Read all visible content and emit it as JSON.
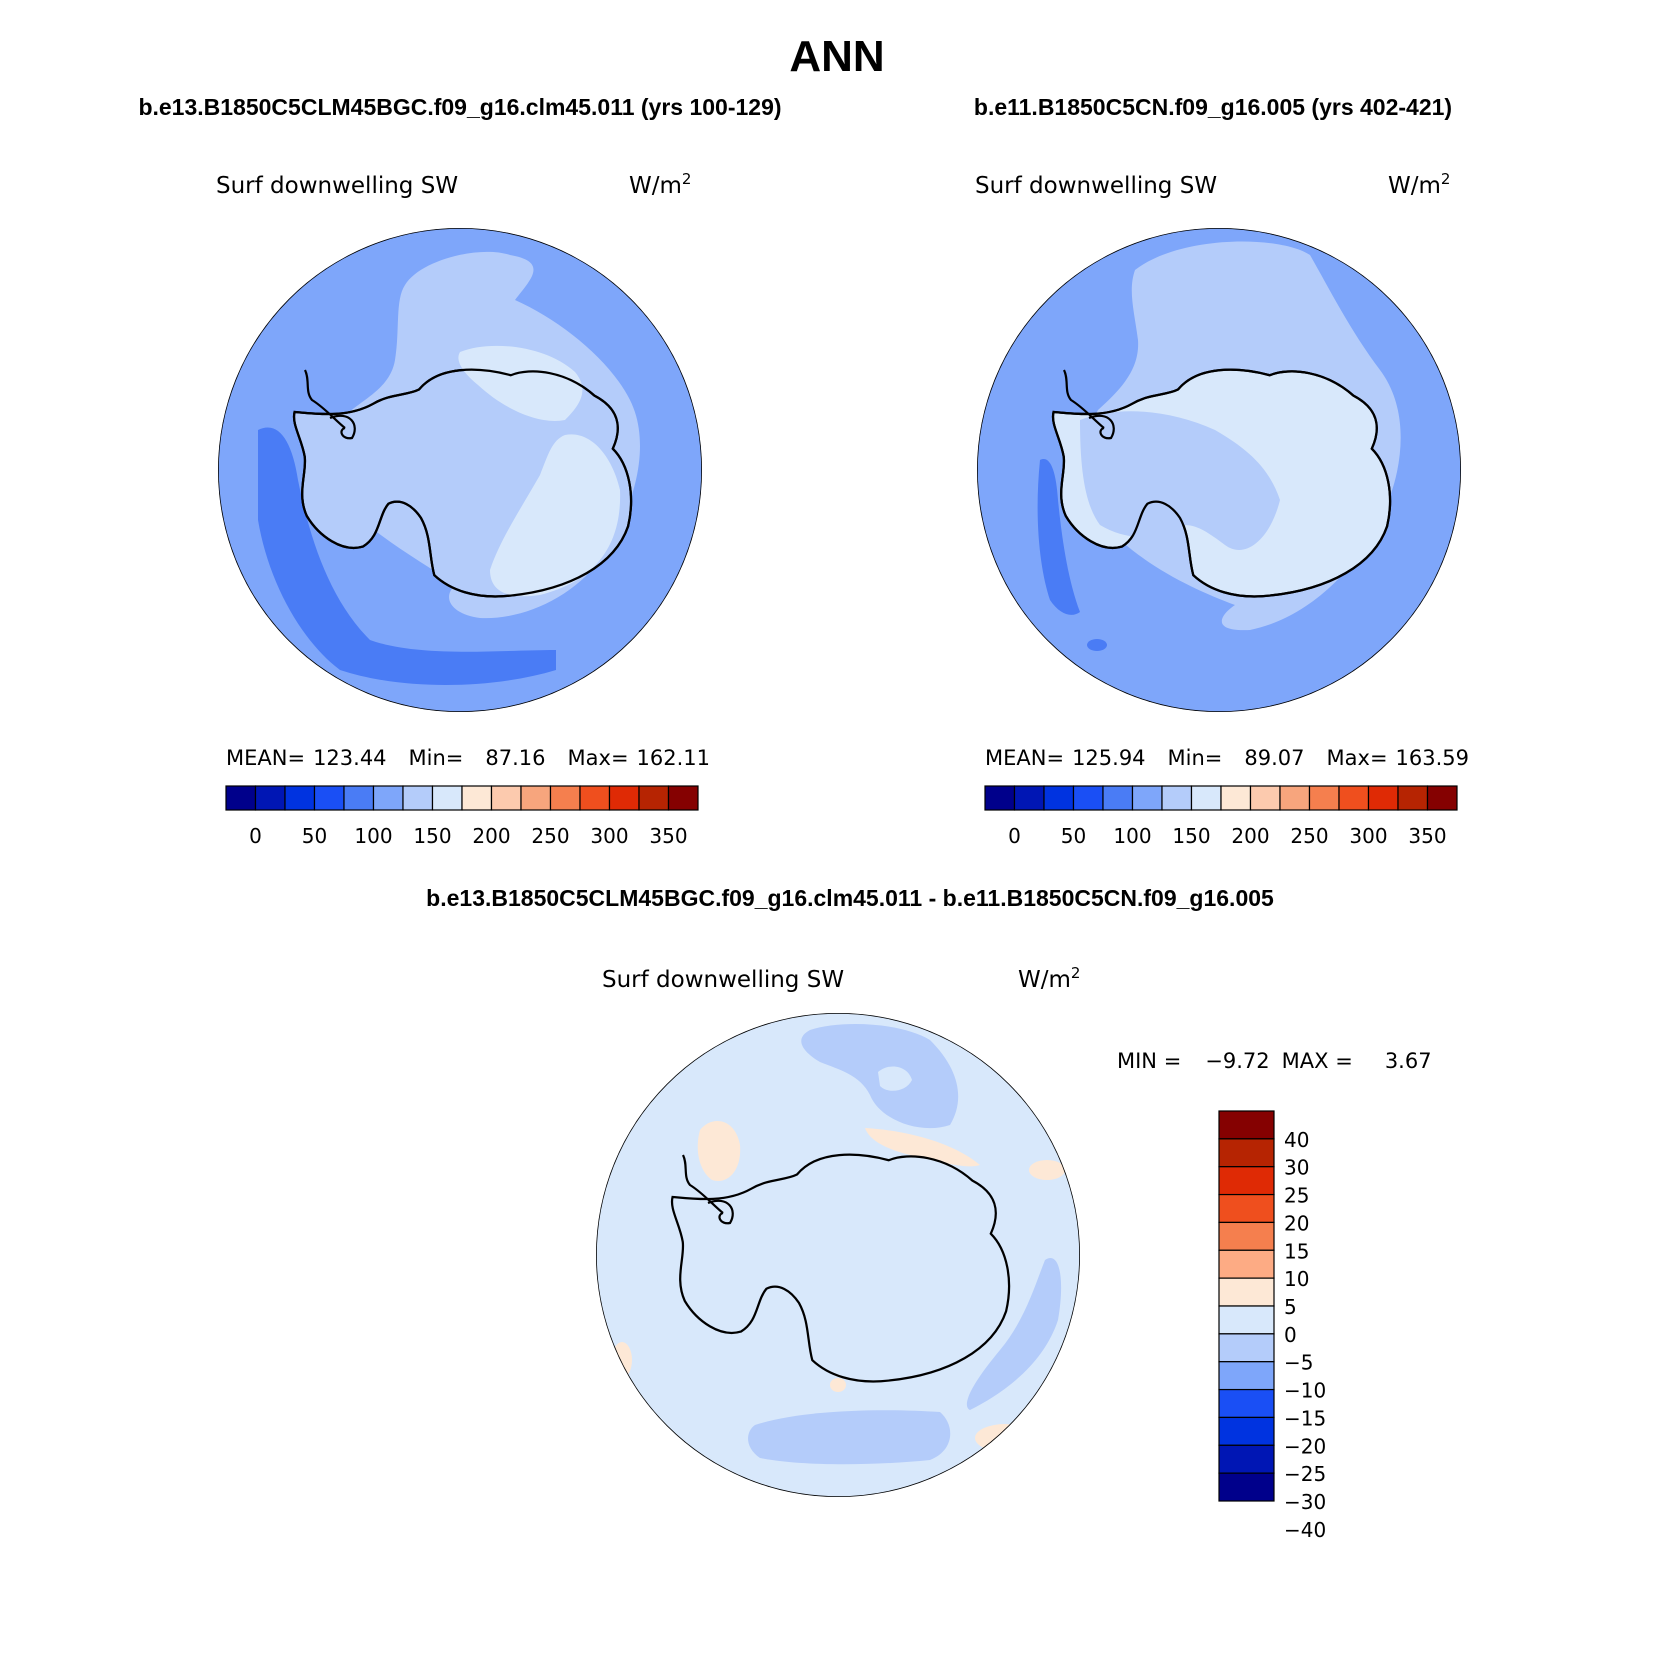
{
  "figure": {
    "title": "ANN",
    "diff_title": "b.e13.B1850C5CLM45BGC.f09_g16.clm45.011 - b.e11.B1850C5CN.f09_g16.005"
  },
  "palette": {
    "abs": [
      "#00008b",
      "#0016b4",
      "#0033e0",
      "#1a4ff5",
      "#4a7cf5",
      "#7ea6fa",
      "#b4ccfa",
      "#d8e8fb",
      "#fde8d6",
      "#fccaae",
      "#f7a57d",
      "#f57f4e",
      "#ef4f1e",
      "#df2a05",
      "#b62402",
      "#850101"
    ],
    "diff": [
      "#850101",
      "#b62402",
      "#df2a05",
      "#ef4f1e",
      "#f57f4e",
      "#fdab84",
      "#fde8d6",
      "#d8e8fb",
      "#b4ccfa",
      "#7ea6fa",
      "#1a4ff5",
      "#0033e0",
      "#0016b4",
      "#00008b"
    ],
    "coast": "#000000"
  },
  "panels": [
    {
      "id": "model1",
      "case": "b.e13.B1850C5CLM45BGC.f09_g16.clm45.011 (yrs 100-129)",
      "variable": "Surf downwelling SW",
      "units": "W/m",
      "units_sup": "2",
      "stats": {
        "mean_label": "MEAN=",
        "mean": "123.44",
        "min_label": "Min=",
        "min": "87.16",
        "max_label": "Max=",
        "max": "162.11"
      },
      "colorbar_labels": [
        "0",
        "50",
        "100",
        "150",
        "200",
        "250",
        "300",
        "350"
      ]
    },
    {
      "id": "model2",
      "case": "b.e11.B1850C5CN.f09_g16.005 (yrs 402-421)",
      "variable": "Surf downwelling SW",
      "units": "W/m",
      "units_sup": "2",
      "stats": {
        "mean_label": "MEAN=",
        "mean": "125.94",
        "min_label": "Min=",
        "min": "89.07",
        "max_label": "Max=",
        "max": "163.59"
      },
      "colorbar_labels": [
        "0",
        "50",
        "100",
        "150",
        "200",
        "250",
        "300",
        "350"
      ]
    },
    {
      "id": "diff",
      "variable": "Surf downwelling SW",
      "units": "W/m",
      "units_sup": "2",
      "minmax": {
        "min_label": "MIN =",
        "min": "−9.72",
        "max_label": "MAX =",
        "max": "3.67"
      },
      "colorbar_labels": [
        "40",
        "30",
        "25",
        "20",
        "15",
        "10",
        "5",
        "0",
        "−5",
        "−10",
        "−15",
        "−20",
        "−25",
        "−30",
        "−40"
      ]
    }
  ]
}
